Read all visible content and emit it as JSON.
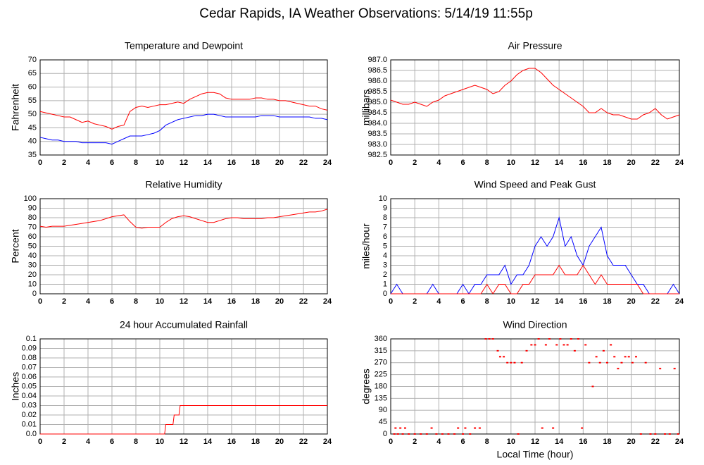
{
  "title": "Cedar Rapids, IA Weather Observations: 5/14/19 11:55p",
  "chart_data": [
    {
      "type": "line",
      "title": "Temperature and Dewpoint",
      "y_label": "Fahrenheit",
      "xlim": [
        0,
        24
      ],
      "xticks": [
        0,
        2,
        4,
        6,
        8,
        10,
        12,
        14,
        16,
        18,
        20,
        22,
        24
      ],
      "ylim": [
        35,
        70
      ],
      "yticks": [
        35,
        40,
        45,
        50,
        55,
        60,
        65,
        70
      ],
      "grid": true,
      "x": [
        0,
        0.5,
        1,
        1.5,
        2,
        2.5,
        3,
        3.5,
        4,
        4.5,
        5,
        5.5,
        6,
        6.5,
        7,
        7.5,
        8,
        8.5,
        9,
        9.5,
        10,
        10.5,
        11,
        11.5,
        12,
        12.5,
        13,
        13.5,
        14,
        14.5,
        15,
        15.5,
        16,
        16.5,
        17,
        17.5,
        18,
        18.5,
        19,
        19.5,
        20,
        20.5,
        21,
        21.5,
        22,
        22.5,
        23,
        23.5,
        24
      ],
      "series": [
        {
          "color": "#ff0000",
          "values": [
            51,
            50.5,
            50,
            49.5,
            49,
            49,
            48,
            47,
            47.5,
            46.5,
            46,
            45.5,
            44.5,
            45.5,
            46,
            51,
            52.5,
            53,
            52.5,
            53,
            53.5,
            53.5,
            54,
            54.5,
            54,
            55.5,
            56.5,
            57.5,
            58,
            58,
            57.5,
            56,
            55.5,
            55.5,
            55.5,
            55.5,
            56,
            56,
            55.5,
            55.5,
            55,
            55,
            54.5,
            54,
            53.5,
            53,
            53,
            52,
            51.5
          ]
        },
        {
          "color": "#0000ff",
          "values": [
            41.5,
            41,
            40.5,
            40.5,
            40,
            40,
            40,
            39.5,
            39.5,
            39.5,
            39.5,
            39.5,
            39,
            40,
            41,
            42,
            42,
            42,
            42.5,
            43,
            44,
            46,
            47,
            48,
            48.5,
            49,
            49.5,
            49.5,
            50,
            50,
            49.5,
            49,
            49,
            49,
            49,
            49,
            49,
            49.5,
            49.5,
            49.5,
            49,
            49,
            49,
            49,
            49,
            49,
            48.5,
            48.5,
            48
          ]
        }
      ]
    },
    {
      "type": "line",
      "title": "Air Pressure",
      "y_label": "millibars",
      "xlim": [
        0,
        24
      ],
      "xticks": [
        0,
        2,
        4,
        6,
        8,
        10,
        12,
        14,
        16,
        18,
        20,
        22,
        24
      ],
      "ylim": [
        982.5,
        987
      ],
      "yticks": [
        982.5,
        {
          "value": 983,
          "label": "983.0"
        },
        983.5,
        {
          "value": 984,
          "label": "984.0"
        },
        984.5,
        {
          "value": 985,
          "label": "985.0"
        },
        985.5,
        {
          "value": 986,
          "label": "986.0"
        },
        986.5,
        {
          "value": 987,
          "label": "987.0"
        }
      ],
      "grid": true,
      "x": [
        0,
        0.5,
        1,
        1.5,
        2,
        2.5,
        3,
        3.5,
        4,
        4.5,
        5,
        5.5,
        6,
        6.5,
        7,
        7.5,
        8,
        8.5,
        9,
        9.5,
        10,
        10.5,
        11,
        11.5,
        12,
        12.5,
        13,
        13.5,
        14,
        14.5,
        15,
        15.5,
        16,
        16.5,
        17,
        17.5,
        18,
        18.5,
        19,
        19.5,
        20,
        20.5,
        21,
        21.5,
        22,
        22.5,
        23,
        23.5,
        24
      ],
      "series": [
        {
          "color": "#ff0000",
          "values": [
            985.1,
            985.0,
            984.9,
            984.9,
            985.0,
            984.9,
            984.8,
            985.0,
            985.1,
            985.3,
            985.4,
            985.5,
            985.6,
            985.7,
            985.8,
            985.7,
            985.6,
            985.4,
            985.5,
            985.8,
            986.0,
            986.3,
            986.5,
            986.6,
            986.6,
            986.4,
            986.1,
            985.8,
            985.6,
            985.4,
            985.2,
            985.0,
            984.8,
            984.5,
            984.5,
            984.7,
            984.5,
            984.4,
            984.4,
            984.3,
            984.2,
            984.2,
            984.4,
            984.5,
            984.7,
            984.4,
            984.2,
            984.3,
            984.4
          ]
        }
      ]
    },
    {
      "type": "line",
      "title": "Relative Humidity",
      "y_label": "Percent",
      "xlim": [
        0,
        24
      ],
      "xticks": [
        0,
        2,
        4,
        6,
        8,
        10,
        12,
        14,
        16,
        18,
        20,
        22,
        24
      ],
      "ylim": [
        0,
        100
      ],
      "yticks": [
        0,
        10,
        20,
        30,
        40,
        50,
        60,
        70,
        80,
        90,
        100
      ],
      "grid": true,
      "x": [
        0,
        0.5,
        1,
        1.5,
        2,
        2.5,
        3,
        3.5,
        4,
        4.5,
        5,
        5.5,
        6,
        6.5,
        7,
        7.5,
        8,
        8.5,
        9,
        9.5,
        10,
        10.5,
        11,
        11.5,
        12,
        12.5,
        13,
        13.5,
        14,
        14.5,
        15,
        15.5,
        16,
        16.5,
        17,
        17.5,
        18,
        18.5,
        19,
        19.5,
        20,
        20.5,
        21,
        21.5,
        22,
        22.5,
        23,
        23.5,
        24
      ],
      "series": [
        {
          "color": "#ff0000",
          "values": [
            71,
            70,
            71,
            71,
            71,
            72,
            73,
            74,
            75,
            76,
            77,
            79,
            81,
            82,
            83,
            76,
            70,
            69,
            70,
            70,
            70,
            75,
            79,
            81,
            82,
            81,
            79,
            77,
            75,
            75,
            77,
            79,
            80,
            80,
            79,
            79,
            79,
            79,
            80,
            80,
            81,
            82,
            83,
            84,
            85,
            86,
            86,
            87,
            89
          ]
        }
      ]
    },
    {
      "type": "line",
      "title": "Wind Speed and Peak Gust",
      "y_label": "miles/hour",
      "xlim": [
        0,
        24
      ],
      "xticks": [
        0,
        2,
        4,
        6,
        8,
        10,
        12,
        14,
        16,
        18,
        20,
        22,
        24
      ],
      "ylim": [
        0,
        10
      ],
      "yticks": [
        0,
        1,
        2,
        3,
        4,
        5,
        6,
        7,
        8,
        9,
        10
      ],
      "grid": true,
      "x": [
        0,
        0.5,
        1,
        1.5,
        2,
        2.5,
        3,
        3.5,
        4,
        4.5,
        5,
        5.5,
        6,
        6.5,
        7,
        7.5,
        8,
        8.5,
        9,
        9.5,
        10,
        10.5,
        11,
        11.5,
        12,
        12.5,
        13,
        13.5,
        14,
        14.5,
        15,
        15.5,
        16,
        16.5,
        17,
        17.5,
        18,
        18.5,
        19,
        19.5,
        20,
        20.5,
        21,
        21.5,
        22,
        22.5,
        23,
        23.5,
        24
      ],
      "series": [
        {
          "color": "#0000ff",
          "values": [
            0,
            1,
            0,
            0,
            0,
            0,
            0,
            1,
            0,
            0,
            0,
            0,
            1,
            0,
            1,
            1,
            2,
            2,
            2,
            3,
            1,
            2,
            2,
            3,
            5,
            6,
            5,
            6,
            8,
            5,
            6,
            4,
            3,
            5,
            6,
            7,
            4,
            3,
            3,
            3,
            2,
            1,
            1,
            0,
            0,
            0,
            0,
            1,
            0
          ]
        },
        {
          "color": "#ff0000",
          "values": [
            0,
            0,
            0,
            0,
            0,
            0,
            0,
            0,
            0,
            0,
            0,
            0,
            0,
            0,
            0,
            0,
            1,
            0,
            1,
            1,
            0,
            0,
            1,
            1,
            2,
            2,
            2,
            2,
            3,
            2,
            2,
            2,
            3,
            2,
            1,
            2,
            1,
            1,
            1,
            1,
            1,
            1,
            0,
            0,
            0,
            0,
            0,
            0,
            0
          ]
        }
      ]
    },
    {
      "type": "line",
      "title": "24 hour Accumulated Rainfall",
      "y_label": "Inches",
      "xlim": [
        0,
        24
      ],
      "xticks": [
        0,
        2,
        4,
        6,
        8,
        10,
        12,
        14,
        16,
        18,
        20,
        22,
        24
      ],
      "ylim": [
        0,
        0.1
      ],
      "yticks": [
        {
          "value": 0,
          "label": "0.0"
        },
        0.01,
        0.02,
        0.03,
        0.04,
        0.05,
        0.06,
        0.07,
        0.08,
        0.09,
        0.1
      ],
      "grid": true,
      "x": [
        0,
        10.4,
        10.5,
        11.1,
        11.2,
        11.6,
        11.7,
        24
      ],
      "series": [
        {
          "color": "#ff0000",
          "values": [
            0,
            0,
            0.01,
            0.01,
            0.02,
            0.02,
            0.03,
            0.03
          ]
        }
      ]
    },
    {
      "type": "scatter",
      "title": "Wind Direction",
      "y_label": "degrees",
      "x_label": "Local Time (hour)",
      "xlim": [
        0,
        24
      ],
      "xticks": [
        0,
        2,
        4,
        6,
        8,
        10,
        12,
        14,
        16,
        18,
        20,
        22,
        24
      ],
      "ylim": [
        0,
        360
      ],
      "yticks": [
        0,
        45,
        90,
        135,
        180,
        225,
        270,
        315,
        360
      ],
      "grid": true,
      "x": [
        0.3,
        0.4,
        0.6,
        0.8,
        1.0,
        1.2,
        1.5,
        2.0,
        2.5,
        3.0,
        3.4,
        3.8,
        4.3,
        4.8,
        5.3,
        5.6,
        6.0,
        6.2,
        6.6,
        7.0,
        7.4,
        7.9,
        8.2,
        8.5,
        8.9,
        9.1,
        9.4,
        9.7,
        10.0,
        10.3,
        10.6,
        10.9,
        11.3,
        11.7,
        12.0,
        12.3,
        12.6,
        12.9,
        13.2,
        13.5,
        13.8,
        14.1,
        14.4,
        14.7,
        15.0,
        15.3,
        15.6,
        15.9,
        16.2,
        16.5,
        16.8,
        17.1,
        17.4,
        17.7,
        18.0,
        18.3,
        18.6,
        18.9,
        19.2,
        19.5,
        19.8,
        20.1,
        20.4,
        20.8,
        21.2,
        21.6,
        22.0,
        22.4,
        22.8,
        23.2,
        23.6,
        23.9
      ],
      "series": [
        {
          "color": "#ff0000",
          "values": [
            0,
            22.5,
            0,
            22.5,
            0,
            22.5,
            0,
            0,
            0,
            0,
            22.5,
            0,
            0,
            0,
            0,
            22.5,
            0,
            22.5,
            0,
            22.5,
            22.5,
            360,
            360,
            360,
            315,
            292.5,
            292.5,
            270,
            270,
            270,
            0,
            270,
            315,
            337.5,
            337.5,
            360,
            22.5,
            337.5,
            360,
            22.5,
            337.5,
            360,
            337.5,
            337.5,
            360,
            315,
            360,
            22.5,
            337.5,
            270,
            180,
            292.5,
            270,
            315,
            270,
            337.5,
            292.5,
            247.5,
            270,
            292.5,
            292.5,
            270,
            292.5,
            0,
            270,
            0,
            0,
            247.5,
            0,
            0,
            247.5,
            0
          ]
        }
      ]
    }
  ]
}
